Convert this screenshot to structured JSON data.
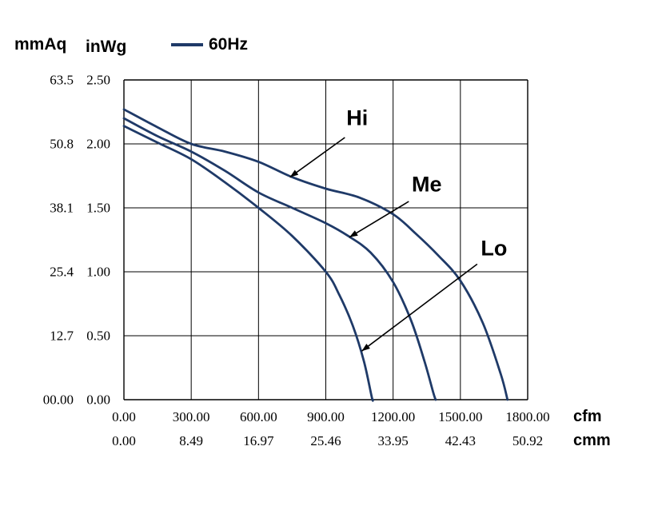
{
  "header": {
    "y_axis_primary_label": "mmAq",
    "y_axis_secondary_label": "inWg",
    "legend": {
      "label": "60Hz",
      "line_color": "#1f3a68"
    }
  },
  "chart_data": {
    "type": "line",
    "title": "",
    "grid": true,
    "legend_position": "top-left",
    "x_axis": {
      "label_cfm": "cfm",
      "label_cmm": "cmm",
      "range_cfm": [
        0,
        1800
      ],
      "cfm_ticks": [
        "0.00",
        "300.00",
        "600.00",
        "900.00",
        "1200.00",
        "1500.00",
        "1800.00"
      ],
      "cmm_ticks": [
        "0.00",
        "8.49",
        "16.97",
        "25.46",
        "33.95",
        "42.43",
        "50.92"
      ]
    },
    "y_axis": {
      "label_mmaq": "mmAq",
      "label_inwg": "inWg",
      "range_inwg": [
        0,
        2.5
      ],
      "mmaq_ticks": [
        "63.5",
        "50.8",
        "38.1",
        "25.4",
        "12.7",
        "00.00"
      ],
      "inwg_ticks": [
        "2.50",
        "2.00",
        "1.50",
        "1.00",
        "0.50",
        "0.00"
      ]
    },
    "series": [
      {
        "name": "Hi",
        "color": "#1f3a68",
        "points": [
          [
            0,
            2.27
          ],
          [
            150,
            2.13
          ],
          [
            300,
            2.0
          ],
          [
            450,
            1.94
          ],
          [
            600,
            1.86
          ],
          [
            750,
            1.74
          ],
          [
            900,
            1.65
          ],
          [
            1050,
            1.58
          ],
          [
            1200,
            1.45
          ],
          [
            1300,
            1.3
          ],
          [
            1400,
            1.13
          ],
          [
            1500,
            0.93
          ],
          [
            1600,
            0.6
          ],
          [
            1680,
            0.2
          ],
          [
            1710,
            0.0
          ]
        ]
      },
      {
        "name": "Me",
        "color": "#1f3a68",
        "points": [
          [
            0,
            2.2
          ],
          [
            150,
            2.06
          ],
          [
            300,
            1.94
          ],
          [
            450,
            1.79
          ],
          [
            600,
            1.62
          ],
          [
            750,
            1.5
          ],
          [
            900,
            1.38
          ],
          [
            1000,
            1.28
          ],
          [
            1100,
            1.15
          ],
          [
            1200,
            0.92
          ],
          [
            1280,
            0.62
          ],
          [
            1340,
            0.3
          ],
          [
            1380,
            0.05
          ],
          [
            1390,
            0.0
          ]
        ]
      },
      {
        "name": "Lo",
        "color": "#1f3a68",
        "points": [
          [
            0,
            2.14
          ],
          [
            150,
            2.01
          ],
          [
            300,
            1.88
          ],
          [
            450,
            1.7
          ],
          [
            600,
            1.5
          ],
          [
            750,
            1.28
          ],
          [
            900,
            1.0
          ],
          [
            960,
            0.82
          ],
          [
            1020,
            0.58
          ],
          [
            1070,
            0.3
          ],
          [
            1105,
            0.02
          ],
          [
            1110,
            0.0
          ]
        ]
      }
    ],
    "annotations": [
      {
        "label": "Hi",
        "label_at": [
          1040,
          2.2
        ],
        "arrow_from": [
          985,
          2.05
        ],
        "arrow_to": [
          740,
          1.74
        ]
      },
      {
        "label": "Me",
        "label_at": [
          1350,
          1.68
        ],
        "arrow_from": [
          1270,
          1.55
        ],
        "arrow_to": [
          1005,
          1.27
        ]
      },
      {
        "label": "Lo",
        "label_at": [
          1650,
          1.18
        ],
        "arrow_from": [
          1575,
          1.06
        ],
        "arrow_to": [
          1060,
          0.38
        ]
      }
    ]
  }
}
